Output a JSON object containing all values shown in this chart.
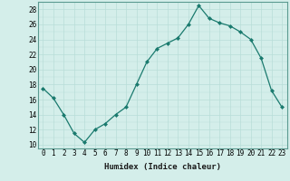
{
  "x": [
    0,
    1,
    2,
    3,
    4,
    5,
    6,
    7,
    8,
    9,
    10,
    11,
    12,
    13,
    14,
    15,
    16,
    17,
    18,
    19,
    20,
    21,
    22,
    23
  ],
  "y": [
    17.5,
    16.2,
    14.0,
    11.5,
    10.3,
    12.0,
    12.8,
    14.0,
    15.0,
    18.0,
    21.0,
    22.8,
    23.5,
    24.2,
    26.0,
    28.5,
    26.8,
    26.2,
    25.8,
    25.0,
    24.0,
    21.5,
    17.2,
    15.0
  ],
  "line_color": "#1a7a6e",
  "marker": "D",
  "marker_size": 2,
  "bg_color": "#d4eeea",
  "grid_color": "#b8ddd8",
  "xlabel": "Humidex (Indice chaleur)",
  "ylim": [
    9.5,
    29
  ],
  "xlim": [
    -0.5,
    23.5
  ],
  "yticks": [
    10,
    12,
    14,
    16,
    18,
    20,
    22,
    24,
    26,
    28
  ],
  "xticks": [
    0,
    1,
    2,
    3,
    4,
    5,
    6,
    7,
    8,
    9,
    10,
    11,
    12,
    13,
    14,
    15,
    16,
    17,
    18,
    19,
    20,
    21,
    22,
    23
  ],
  "xlabel_fontsize": 6.5,
  "tick_fontsize": 5.5
}
